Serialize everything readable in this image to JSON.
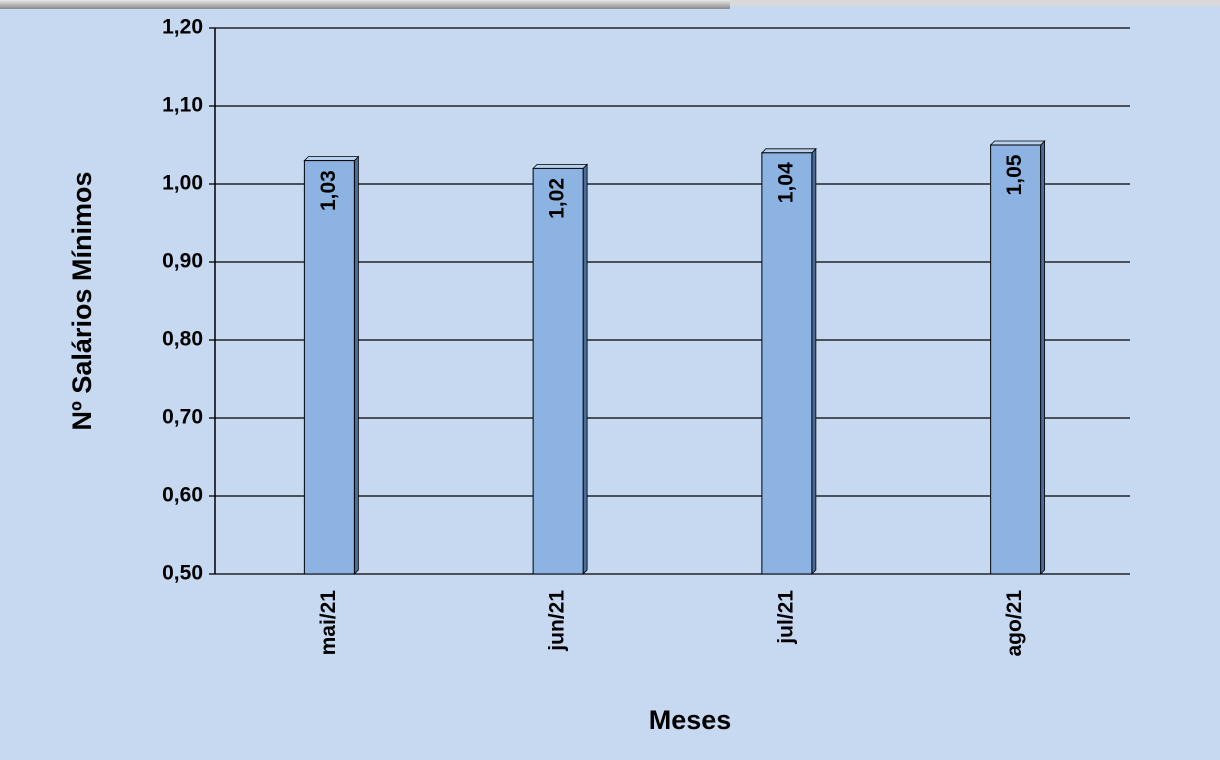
{
  "chart_data": {
    "type": "bar",
    "x_label": "Meses",
    "y_label": "Nº Salários Mínimos",
    "categories": [
      "mai/21",
      "jun/21",
      "jul/21",
      "ago/21"
    ],
    "values": [
      1.03,
      1.02,
      1.04,
      1.05
    ],
    "value_labels": [
      "1,03",
      "1,02",
      "1,04",
      "1,05"
    ],
    "color": "#8db3e2",
    "ylim": [
      0.5,
      1.2
    ],
    "yticks": [
      {
        "value": 0.5,
        "label": "0,50"
      },
      {
        "value": 0.6,
        "label": "0,60"
      },
      {
        "value": 0.7,
        "label": "0,70"
      },
      {
        "value": 0.8,
        "label": "0,80"
      },
      {
        "value": 0.9,
        "label": "0,90"
      },
      {
        "value": 1.0,
        "label": "1,00"
      },
      {
        "value": 1.1,
        "label": "1,10"
      },
      {
        "value": 1.2,
        "label": "1,20"
      }
    ],
    "grid": true
  }
}
